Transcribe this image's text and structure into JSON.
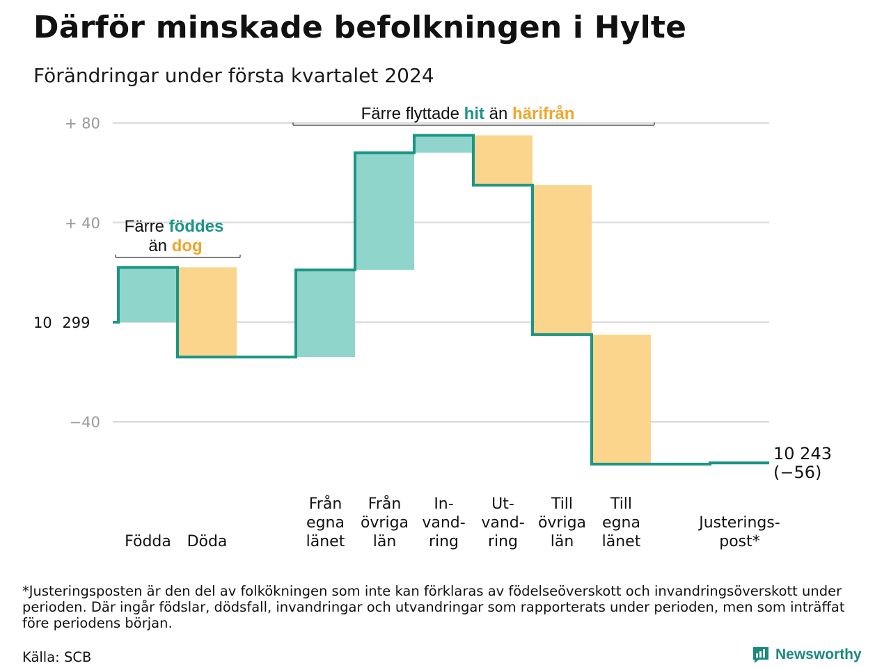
{
  "header": {
    "title": "Därför minskade befolkningen i Hylte",
    "subtitle": "Förändringar under första kvartalet 2024"
  },
  "colors": {
    "increase": "#8fd5cb",
    "decrease": "#fbd58c",
    "line": "#1b9584",
    "accent_teal": "#1b9584",
    "accent_orange": "#f2a52a",
    "grid": "#dddddd",
    "tick": "#999999"
  },
  "annotations": {
    "births": {
      "prefix": "Färre",
      "teal": "föddes",
      "line2_prefix": "än",
      "orange": "dog"
    },
    "migration": {
      "prefix": "Färre flyttade",
      "teal": "hit",
      "mid": "än",
      "orange": "härifrån"
    }
  },
  "chart_data": {
    "type": "waterfall",
    "base_label": "10 299",
    "start_value": 10299,
    "end_value": 10243,
    "end_label": [
      "10 243",
      "(−56)"
    ],
    "y_ticks": [
      {
        "value": 80,
        "label": "+  80"
      },
      {
        "value": 40,
        "label": "+  40"
      },
      {
        "value": -40,
        "label": "−40"
      }
    ],
    "ylim": [
      -50,
      82
    ],
    "grid": true,
    "steps": [
      {
        "label": [
          "Födda"
        ],
        "change": 22
      },
      {
        "label": [
          "Döda"
        ],
        "change": -36
      },
      {
        "label": [],
        "change": 0
      },
      {
        "label": [
          "Från",
          "egna",
          "länet"
        ],
        "change": 35
      },
      {
        "label": [
          "Från",
          "övriga",
          "län"
        ],
        "change": 47
      },
      {
        "label": [
          "In-",
          "vand-",
          "ring"
        ],
        "change": 7
      },
      {
        "label": [
          "Ut-",
          "vand-",
          "ring"
        ],
        "change": -20
      },
      {
        "label": [
          "Till",
          "övriga",
          "län"
        ],
        "change": -60
      },
      {
        "label": [
          "Till",
          "egna",
          "länet"
        ],
        "change": -52
      },
      {
        "label": [],
        "change": 0
      },
      {
        "label": [
          "Justerings-",
          "post*"
        ],
        "change": 0.5
      }
    ]
  },
  "footnote": "*Justeringsposten är den del av folkökningen som inte kan förklaras av födelseöverskott och invandringsöverskott under perioden. Där ingår födslar, dödsfall, invandringar och utvandringar som rapporterats under perioden, men som inträffat före periodens början.",
  "source": "Källa: SCB",
  "logo": {
    "text": "Newsworthy"
  }
}
